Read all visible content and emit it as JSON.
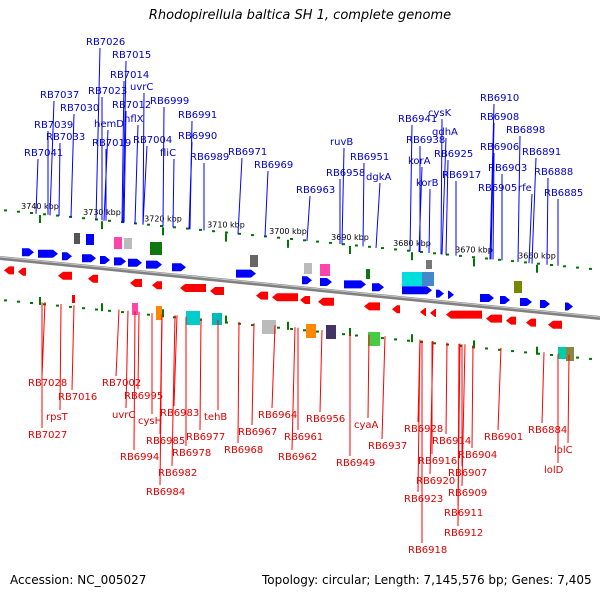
{
  "title": "Rhodopirellula baltica SH 1, complete genome",
  "footer": {
    "accession": "Accession: NC_005027",
    "summary": "Topology: circular; Length: 7,145,576 bp; Genes: 7,405"
  },
  "colors": {
    "forward": "#0000ff",
    "reverse": "#ff0000",
    "forward_label": "#0000c8",
    "reverse_label": "#e00000",
    "backbone": "#808080",
    "tick": "#007700"
  },
  "scale_ticks": [
    "3740 kbp",
    "3730 kbp",
    "3720 kbp",
    "3710 kbp",
    "3700 kbp",
    "3690 kbp",
    "3680 kbp",
    "3670 kbp",
    "3660 kbp"
  ],
  "forward_labels": [
    "RB7026",
    "RB7015",
    "RB7014",
    "uvrC",
    "RB7023",
    "RB7037",
    "RB7030",
    "RB7012",
    "RB6999",
    "RB7039",
    "hemD",
    "hflX",
    "RB6991",
    "RB7033",
    "RB7019",
    "RB7004",
    "RB6990",
    "RB7041",
    "fliC",
    "RB6989",
    "RB6971",
    "RB6969",
    "ruvB",
    "RB6951",
    "RB6958",
    "dgkA",
    "RB6963",
    "RB6941",
    "cysK",
    "RB6938",
    "gdhA",
    "korA",
    "RB6925",
    "korB",
    "RB6917",
    "RB6910",
    "RB6908",
    "RB6898",
    "RB6906",
    "RB6903",
    "RB6891",
    "rfe",
    "RB6905",
    "RB6888",
    "RB6885"
  ],
  "reverse_labels": [
    "RB7028",
    "RB7016",
    "rpsT",
    "RB7027",
    "RB7002",
    "uvrC",
    "RB6995",
    "cysH",
    "RB6983",
    "RB6985",
    "RB6994",
    "RB6978",
    "RB6982",
    "RB6984",
    "RB6977",
    "tehB",
    "RB6964",
    "RB6967",
    "RB6968",
    "RB6961",
    "RB6962",
    "RB6956",
    "cyaA",
    "RB6949",
    "RB6937",
    "RB6928",
    "RB6914",
    "RB6916",
    "RB6920",
    "RB6923",
    "RB6904",
    "RB6907",
    "RB6909",
    "RB6911",
    "RB6912",
    "RB6918",
    "RB6901",
    "RB6884",
    "lolC",
    "lolD"
  ]
}
